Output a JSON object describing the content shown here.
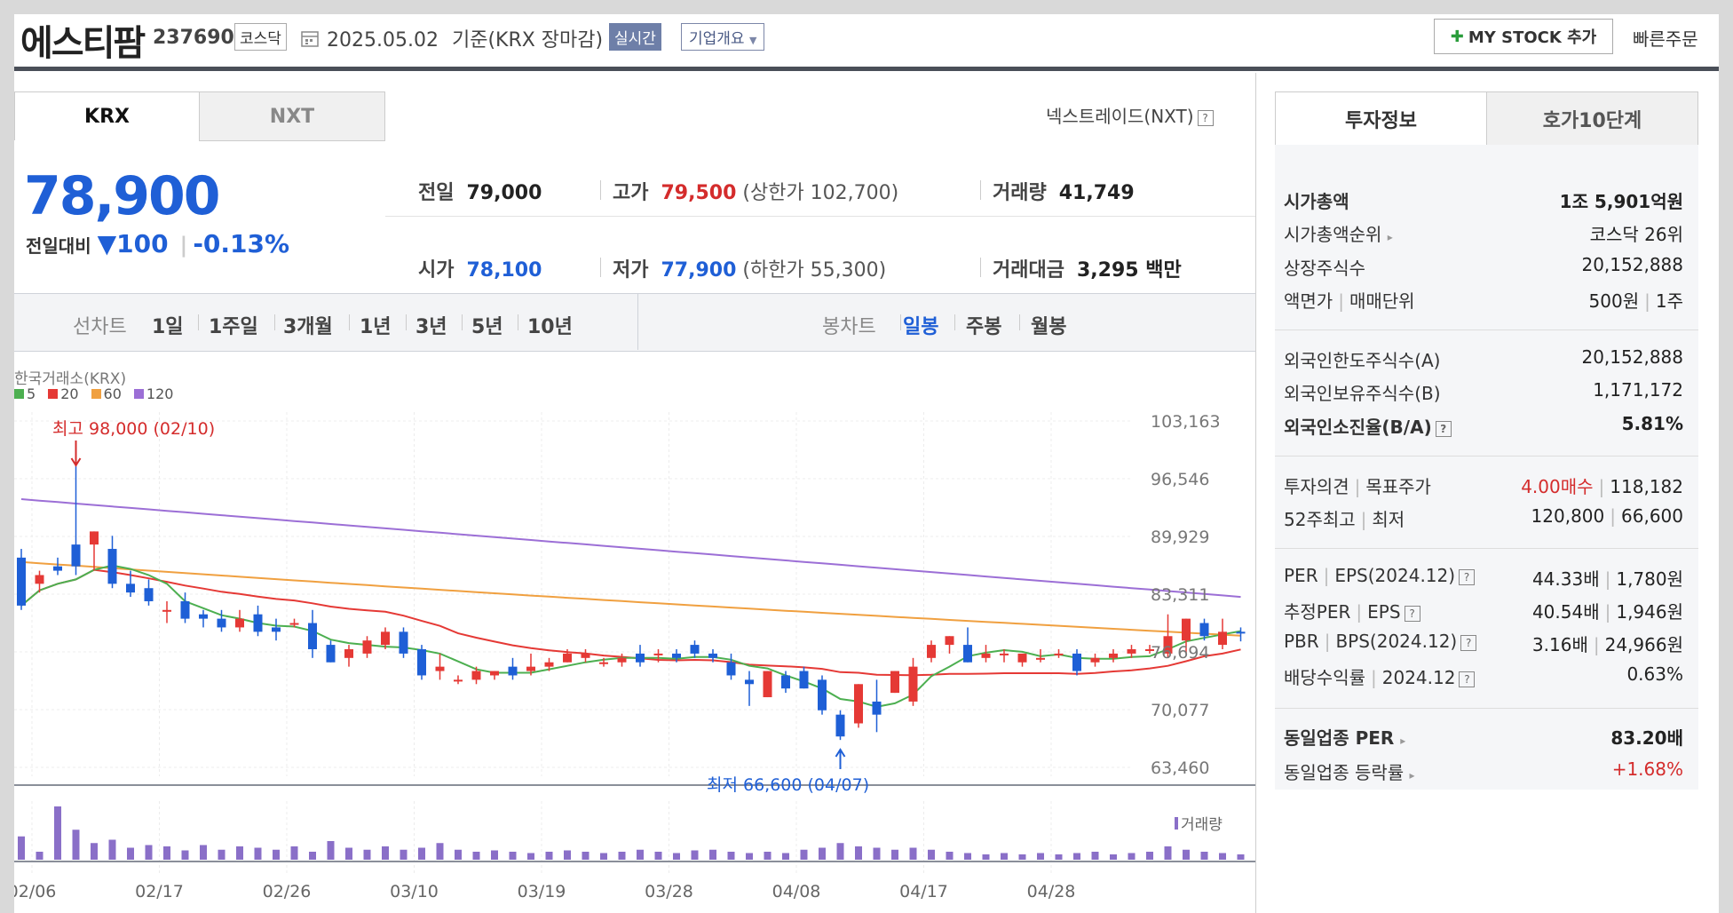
{
  "header": {
    "title": "에스티팜",
    "code": "237690",
    "market": "코스닥",
    "date": "2025.05.02",
    "date_suffix": "기준(KRX 장마감)",
    "live_label": "실시간",
    "corp_label": "기업개요",
    "my_stock_label": "MY STOCK 추가",
    "quick_order_label": "빠른주문"
  },
  "exchange_tabs": {
    "krx": "KRX",
    "nxt": "NXT",
    "nextrade_link": "넥스트레이드(NXT)"
  },
  "quote": {
    "price": "78,900",
    "change_label": "전일대비",
    "change": "100",
    "change_pct": "-0.13%",
    "prev_label": "전일",
    "prev": "79,000",
    "high_label": "고가",
    "high": "79,500",
    "upper_limit": "(상한가 102,700)",
    "volume_label": "거래량",
    "volume": "41,749",
    "open_label": "시가",
    "open": "78,100",
    "low_label": "저가",
    "low": "77,900",
    "lower_limit": "(하한가 55,300)",
    "amount_label": "거래대금",
    "amount": "3,295 백만"
  },
  "period_bar": {
    "line_label": "선차트",
    "line_items": [
      "1일",
      "1주일",
      "3개월",
      "1년",
      "3년",
      "5년",
      "10년"
    ],
    "candle_label": "봉차트",
    "candle_items": [
      "일봉",
      "주봉",
      "월봉"
    ],
    "active_candle": "일봉"
  },
  "chart_data": {
    "type": "candlestick",
    "source_label": "한국거래소(KRX)",
    "legend": [
      {
        "name": "5",
        "color": "#4caf50"
      },
      {
        "name": "20",
        "color": "#e53935"
      },
      {
        "name": "60",
        "color": "#f0a040"
      },
      {
        "name": "120",
        "color": "#9c6fd6"
      }
    ],
    "y_ticks": [
      "103,163",
      "96,546",
      "89,929",
      "83,311",
      "76,694",
      "70,077",
      "63,460"
    ],
    "ylim": [
      63460,
      103163
    ],
    "x_ticks": [
      "02/06",
      "02/17",
      "02/26",
      "03/10",
      "03/19",
      "03/28",
      "04/08",
      "04/17",
      "04/28"
    ],
    "max_annotation": "최고 98,000 (02/10)",
    "min_annotation": "최저 66,600 (04/07)",
    "volume_label": "거래량",
    "ohlc": [
      [
        87500,
        88500,
        81500,
        82000
      ],
      [
        84500,
        86000,
        83500,
        85500
      ],
      [
        86500,
        87500,
        85500,
        86000
      ],
      [
        89000,
        98000,
        85500,
        86500
      ],
      [
        89000,
        90500,
        86000,
        90500
      ],
      [
        88500,
        90000,
        84000,
        84500
      ],
      [
        84500,
        86000,
        83000,
        83500
      ],
      [
        84000,
        85000,
        82000,
        82500
      ],
      [
        81500,
        82500,
        80000,
        81500
      ],
      [
        82500,
        83500,
        80000,
        80500
      ],
      [
        81000,
        81500,
        79500,
        80500
      ],
      [
        80500,
        81500,
        79000,
        79500
      ],
      [
        79500,
        81500,
        79000,
        80500
      ],
      [
        81000,
        82000,
        78500,
        79000
      ],
      [
        79500,
        80500,
        78000,
        79000
      ],
      [
        80000,
        80500,
        79500,
        80000
      ],
      [
        80000,
        81500,
        76000,
        77000
      ],
      [
        77500,
        78000,
        75500,
        75500
      ],
      [
        76000,
        77500,
        75000,
        77000
      ],
      [
        76500,
        78500,
        76000,
        78000
      ],
      [
        77500,
        79500,
        77000,
        79000
      ],
      [
        79000,
        79500,
        76000,
        76500
      ],
      [
        77000,
        77500,
        73500,
        74000
      ],
      [
        74500,
        76500,
        73500,
        75000
      ],
      [
        73500,
        74000,
        73000,
        73500
      ],
      [
        73500,
        75000,
        73000,
        74500
      ],
      [
        74000,
        74500,
        73500,
        74500
      ],
      [
        75000,
        76000,
        73500,
        74000
      ],
      [
        74500,
        76500,
        74000,
        75000
      ],
      [
        75000,
        76000,
        74500,
        75500
      ],
      [
        75500,
        77000,
        75500,
        76500
      ],
      [
        76000,
        77000,
        75500,
        76500
      ],
      [
        75500,
        76000,
        75000,
        75500
      ],
      [
        75500,
        76500,
        75000,
        76000
      ],
      [
        76500,
        77500,
        75000,
        75500
      ],
      [
        76500,
        77000,
        75500,
        76500
      ],
      [
        76500,
        77000,
        75500,
        76000
      ],
      [
        77500,
        78000,
        76000,
        76500
      ],
      [
        76500,
        77000,
        75500,
        76000
      ],
      [
        75500,
        76500,
        73500,
        74000
      ],
      [
        73500,
        74500,
        70500,
        73000
      ],
      [
        71500,
        74500,
        71500,
        74500
      ],
      [
        74000,
        74500,
        72000,
        72500
      ],
      [
        74500,
        75000,
        72500,
        72500
      ],
      [
        73500,
        74000,
        69500,
        70000
      ],
      [
        69500,
        70000,
        66600,
        67000
      ],
      [
        68500,
        73000,
        68000,
        73000
      ],
      [
        71000,
        73500,
        67500,
        69500
      ],
      [
        72000,
        74500,
        72000,
        74500
      ],
      [
        71000,
        76000,
        70500,
        75000
      ],
      [
        76000,
        78000,
        75500,
        77500
      ],
      [
        77500,
        78500,
        76500,
        78500
      ],
      [
        77500,
        79500,
        75500,
        75500
      ],
      [
        76000,
        77500,
        75500,
        76500
      ],
      [
        76500,
        77000,
        75500,
        76500
      ],
      [
        75500,
        76500,
        75000,
        76500
      ],
      [
        76000,
        77000,
        75500,
        76000
      ],
      [
        76500,
        77000,
        76000,
        76500
      ],
      [
        76500,
        77000,
        74000,
        74500
      ],
      [
        75500,
        76500,
        75000,
        76000
      ],
      [
        76000,
        77000,
        75500,
        76500
      ],
      [
        76500,
        77500,
        76000,
        77000
      ],
      [
        77000,
        77500,
        76500,
        77000
      ],
      [
        76500,
        81000,
        76000,
        78500
      ],
      [
        78000,
        80500,
        76500,
        80500
      ],
      [
        80000,
        80500,
        78000,
        78500
      ],
      [
        77500,
        80500,
        77000,
        79000
      ],
      [
        79000,
        79500,
        77900,
        78900
      ]
    ],
    "volume": [
      35,
      12,
      80,
      45,
      25,
      30,
      18,
      22,
      20,
      14,
      22,
      15,
      20,
      18,
      15,
      20,
      12,
      28,
      18,
      15,
      20,
      15,
      18,
      25,
      15,
      12,
      14,
      12,
      10,
      12,
      14,
      12,
      10,
      12,
      15,
      12,
      10,
      14,
      15,
      12,
      10,
      12,
      10,
      15,
      18,
      25,
      20,
      18,
      15,
      18,
      15,
      12,
      10,
      8,
      10,
      8,
      10,
      8,
      10,
      12,
      8,
      10,
      12,
      20,
      15,
      12,
      10,
      8
    ],
    "max_volume": 80
  },
  "right_panel": {
    "tabs": [
      "투자정보",
      "호가10단계"
    ],
    "rows": [
      {
        "label": "시가총액",
        "value": "1조 5,901억원",
        "bold": true
      },
      {
        "label": "시가총액순위",
        "value": "코스닥 26위",
        "arrow": true
      },
      {
        "label": "상장주식수",
        "value": "20,152,888"
      },
      {
        "label": "액면가",
        "label2": "매매단위",
        "value": "500원",
        "value2": "1주"
      },
      {
        "label": "외국인한도주식수(A)",
        "value": "20,152,888"
      },
      {
        "label": "외국인보유주식수(B)",
        "value": "1,171,172"
      },
      {
        "label": "외국인소진율(B/A)",
        "value": "5.81%",
        "bold": true,
        "help": true
      },
      {
        "label": "투자의견",
        "label2": "목표주가",
        "value": "4.00매수",
        "value2": "118,182",
        "red": true
      },
      {
        "label": "52주최고",
        "label2": "최저",
        "value": "120,800",
        "value2": "66,600"
      },
      {
        "label": "PER",
        "label2": "EPS(2024.12)",
        "value": "44.33배",
        "value2": "1,780원",
        "help": true
      },
      {
        "label": "추정PER",
        "label2": "EPS",
        "value": "40.54배",
        "value2": "1,946원",
        "help": true
      },
      {
        "label": "PBR",
        "label2": "BPS(2024.12)",
        "value": "3.16배",
        "value2": "24,966원",
        "help": true
      },
      {
        "label": "배당수익률",
        "label2": "2024.12",
        "value": "0.63%",
        "help": true
      },
      {
        "label": "동일업종 PER",
        "value": "83.20배",
        "bold": true,
        "arrow": true
      },
      {
        "label": "동일업종 등락률",
        "value": "+1.68%",
        "arrow": true,
        "red": true
      }
    ]
  },
  "colors": {
    "up": "#e53935",
    "down": "#1e5fd6",
    "accent_blue": "#1f5fd6",
    "accent_red": "#d42c2c"
  }
}
